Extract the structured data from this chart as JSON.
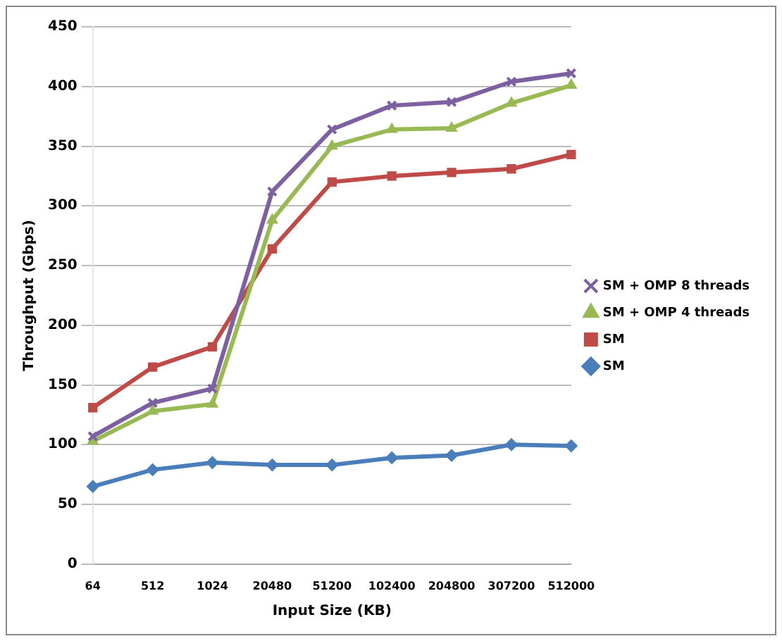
{
  "chart_data": {
    "type": "line",
    "xlabel": "Input Size (KB)",
    "ylabel": "Throughput (Gbps)",
    "categories": [
      "64",
      "512",
      "1024",
      "20480",
      "51200",
      "102400",
      "204800",
      "307200",
      "512000"
    ],
    "series": [
      {
        "name": "SM",
        "color": "#4a7ebb",
        "marker": "diamond",
        "values": [
          65,
          79,
          85,
          83,
          83,
          89,
          91,
          100,
          99
        ]
      },
      {
        "name": "SM",
        "color": "#be4b48",
        "marker": "square",
        "values": [
          131,
          165,
          182,
          264,
          320,
          325,
          328,
          331,
          343
        ]
      },
      {
        "name": "SM + OMP 4 threads",
        "color": "#98b954",
        "marker": "triangle",
        "values": [
          103,
          128,
          134,
          288,
          350,
          364,
          365,
          386,
          401
        ]
      },
      {
        "name": "SM + OMP 8 threads",
        "color": "#7d60a0",
        "marker": "cross",
        "values": [
          107,
          135,
          147,
          312,
          364,
          384,
          387,
          404,
          411
        ]
      }
    ],
    "ylim": [
      0,
      450
    ],
    "yticks": [
      0,
      50,
      100,
      150,
      200,
      250,
      300,
      350,
      400,
      450
    ],
    "grid": "y",
    "legend": "right"
  }
}
